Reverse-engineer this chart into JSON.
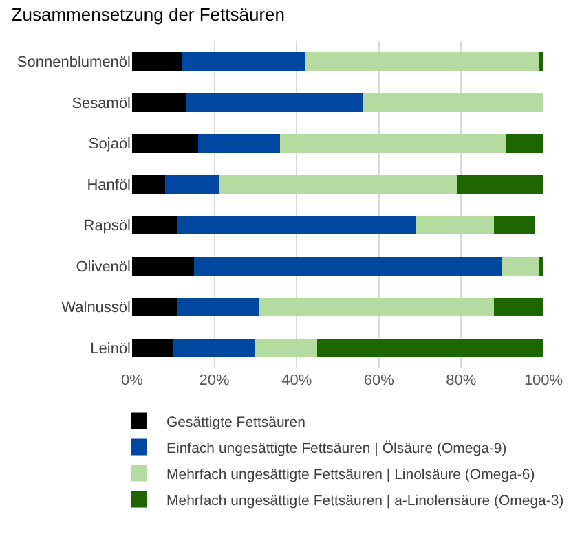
{
  "chart_data": {
    "type": "bar",
    "title": "Zusammensetzung der Fettsäuren",
    "orientation": "horizontal",
    "stacked": true,
    "categories": [
      "Sonnenblumenöl",
      "Sesamöl",
      "Sojaöl",
      "Hanföl",
      "Rapsöl",
      "Olivenöl",
      "Walnussöl",
      "Leinöl"
    ],
    "series": [
      {
        "name": "Gesättigte Fettsäuren",
        "color": "#000000",
        "values": [
          12,
          13,
          16,
          8,
          11,
          15,
          11,
          10
        ]
      },
      {
        "name": "Einfach ungesättigte Fettsäuren | Ölsäure (Omega-9)",
        "color": "#0047a0",
        "values": [
          30,
          43,
          20,
          13,
          58,
          75,
          20,
          20
        ]
      },
      {
        "name": "Mehrfach ungesättigte Fettsäuren | Linolsäure (Omega-6)",
        "color": "#b5dca0",
        "values": [
          57,
          44,
          55,
          58,
          19,
          9,
          57,
          15
        ]
      },
      {
        "name": "Mehrfach ungesättigte Fettsäuren | a-Linolensäure (Omega-3)",
        "color": "#1e6400",
        "values": [
          1,
          0,
          9,
          21,
          10,
          1,
          12,
          55
        ]
      }
    ],
    "xlim": [
      0,
      100
    ],
    "xticks": [
      {
        "value": 0,
        "label": "0%"
      },
      {
        "value": 20,
        "label": "20%"
      },
      {
        "value": 40,
        "label": "40%"
      },
      {
        "value": 60,
        "label": "60%"
      },
      {
        "value": 80,
        "label": "80%"
      },
      {
        "value": 100,
        "label": "100%"
      }
    ],
    "grid": "x",
    "legend": "bottom left"
  }
}
